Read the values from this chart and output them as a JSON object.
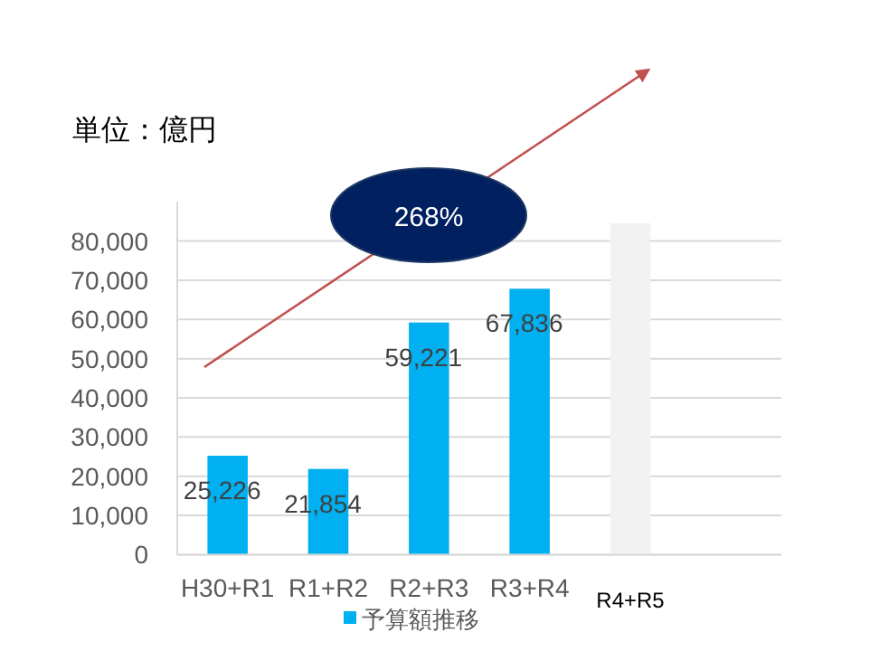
{
  "chart_data": {
    "type": "bar",
    "ylabel": "単位：億円",
    "categories": [
      "H30+R1",
      "R1+R2",
      "R2+R3",
      "R3+R4",
      "R4+R5",
      null
    ],
    "series": [
      {
        "name": "予算額推移",
        "color": "#00b0f0",
        "colors": [
          "#00b0f0",
          "#00b0f0",
          "#00b0f0",
          "#00b0f0",
          "#f2f2f2",
          null
        ],
        "values": [
          25226,
          21854,
          59221,
          67836,
          84600,
          null
        ],
        "value_labels": [
          "25,226",
          "21,854",
          "59,221",
          "67,836",
          null,
          null
        ]
      }
    ],
    "annotations": [
      "268%"
    ],
    "ylim": [
      0,
      90000
    ],
    "yticks": [
      {
        "value": 0,
        "label": "0"
      },
      {
        "value": 10000,
        "label": "10,000"
      },
      {
        "value": 20000,
        "label": "20,000"
      },
      {
        "value": 30000,
        "label": "30,000"
      },
      {
        "value": 40000,
        "label": "40,000"
      },
      {
        "value": 50000,
        "label": "50,000"
      },
      {
        "value": 60000,
        "label": "60,000"
      },
      {
        "value": 70000,
        "label": "70,000"
      },
      {
        "value": 80000,
        "label": "80,000"
      }
    ],
    "grid": "y",
    "legend": "bottom"
  }
}
